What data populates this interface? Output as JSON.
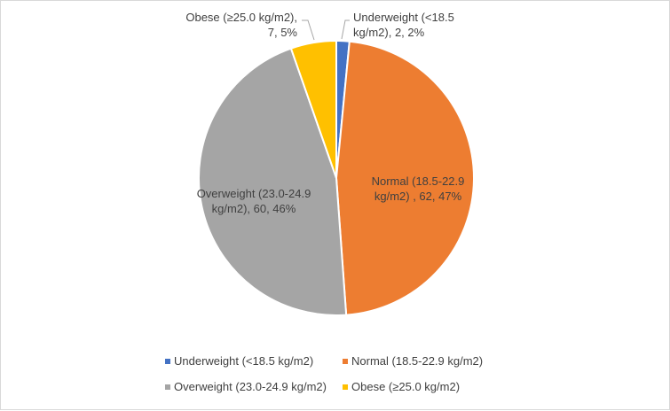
{
  "chart_data": {
    "type": "pie",
    "title": "",
    "legend_position": "bottom",
    "categories": [
      "Underweight (<18.5 kg/m2)",
      "Normal (18.5-22.9 kg/m2)",
      "Overweight (23.0-24.9 kg/m2)",
      "Obese (≥25.0 kg/m2)"
    ],
    "values": [
      2,
      62,
      60,
      7
    ],
    "percents": [
      2,
      47,
      46,
      5
    ],
    "colors": [
      "#4472C4",
      "#ED7D31",
      "#A5A5A5",
      "#FFC000"
    ],
    "data_labels": [
      [
        "Underweight (<18.5",
        "kg/m2), 2, 2%"
      ],
      [
        "Normal (18.5-22.9",
        "kg/m2) , 62, 47%"
      ],
      [
        "Overweight (23.0-24.9",
        "kg/m2), 60, 46%"
      ],
      [
        "Obese (≥25.0 kg/m2),",
        "7, 5%"
      ]
    ]
  }
}
